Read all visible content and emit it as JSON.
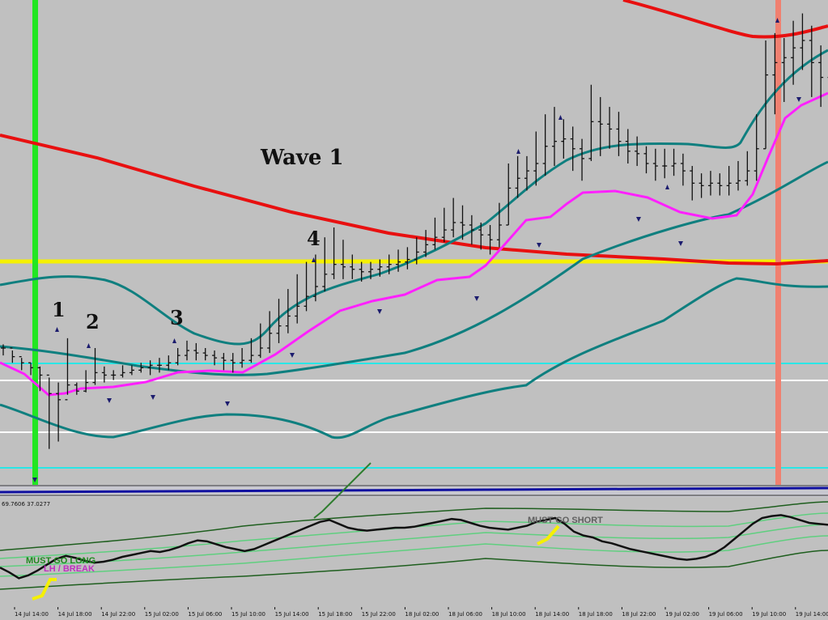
{
  "chart_data": [
    {
      "type": "ohlc",
      "title": "",
      "price_bars": [
        [
          100,
          94,
          103
        ],
        [
          93,
          88,
          98
        ],
        [
          88,
          82,
          92
        ],
        [
          84,
          78,
          88
        ],
        [
          78,
          65,
          85
        ],
        [
          63,
          18,
          76
        ],
        [
          58,
          24,
          72
        ],
        [
          70,
          62,
          108
        ],
        [
          65,
          62,
          72
        ],
        [
          72,
          64,
          82
        ],
        [
          80,
          70,
          100
        ],
        [
          78,
          72,
          85
        ],
        [
          78,
          74,
          82
        ],
        [
          80,
          76,
          86
        ],
        [
          82,
          78,
          86
        ],
        [
          84,
          80,
          88
        ],
        [
          86,
          78,
          90
        ],
        [
          86,
          80,
          92
        ],
        [
          88,
          82,
          94
        ],
        [
          94,
          86,
          100
        ],
        [
          98,
          90,
          106
        ],
        [
          96,
          90,
          104
        ],
        [
          94,
          90,
          100
        ],
        [
          92,
          86,
          98
        ],
        [
          90,
          82,
          96
        ],
        [
          88,
          80,
          96
        ],
        [
          90,
          84,
          100
        ],
        [
          94,
          88,
          108
        ],
        [
          100,
          92,
          120
        ],
        [
          112,
          96,
          130
        ],
        [
          118,
          104,
          140
        ],
        [
          126,
          112,
          148
        ],
        [
          134,
          120,
          160
        ],
        [
          142,
          130,
          170
        ],
        [
          150,
          138,
          176
        ],
        [
          160,
          146,
          190
        ],
        [
          168,
          156,
          198
        ],
        [
          166,
          156,
          188
        ],
        [
          164,
          156,
          176
        ],
        [
          162,
          154,
          170
        ],
        [
          164,
          156,
          170
        ],
        [
          166,
          158,
          172
        ],
        [
          168,
          160,
          176
        ],
        [
          170,
          162,
          180
        ],
        [
          172,
          164,
          182
        ],
        [
          178,
          168,
          190
        ],
        [
          184,
          174,
          196
        ],
        [
          190,
          180,
          206
        ],
        [
          196,
          186,
          214
        ],
        [
          202,
          190,
          222
        ],
        [
          200,
          188,
          216
        ],
        [
          196,
          184,
          208
        ],
        [
          192,
          180,
          202
        ],
        [
          188,
          176,
          200
        ],
        [
          200,
          182,
          218
        ],
        [
          230,
          200,
          250
        ],
        [
          238,
          222,
          256
        ],
        [
          244,
          228,
          256
        ],
        [
          250,
          232,
          276
        ],
        [
          264,
          240,
          290
        ],
        [
          268,
          248,
          296
        ],
        [
          270,
          254,
          286
        ],
        [
          262,
          244,
          280
        ],
        [
          254,
          236,
          270
        ],
        [
          284,
          252,
          314
        ],
        [
          282,
          256,
          304
        ],
        [
          278,
          262,
          296
        ],
        [
          268,
          256,
          292
        ],
        [
          260,
          250,
          278
        ],
        [
          258,
          248,
          272
        ],
        [
          250,
          242,
          264
        ],
        [
          248,
          236,
          262
        ],
        [
          248,
          238,
          262
        ],
        [
          250,
          240,
          262
        ],
        [
          244,
          232,
          258
        ],
        [
          234,
          220,
          248
        ],
        [
          232,
          222,
          242
        ],
        [
          234,
          224,
          244
        ],
        [
          232,
          224,
          242
        ],
        [
          234,
          224,
          248
        ],
        [
          236,
          228,
          252
        ],
        [
          244,
          232,
          260
        ],
        [
          262,
          236,
          290
        ],
        [
          322,
          262,
          350
        ],
        [
          332,
          290,
          356
        ],
        [
          336,
          300,
          352
        ],
        [
          344,
          314,
          366
        ],
        [
          350,
          326,
          372
        ],
        [
          332,
          304,
          362
        ],
        [
          320,
          296,
          346
        ],
        [
          324,
          300,
          352
        ],
        [
          330,
          304,
          356
        ]
      ],
      "wave_labels": [
        "Wave 1",
        "1",
        "2",
        "3",
        "4"
      ],
      "x_ticks": [
        "14 Jul 14:00",
        "14 Jul 18:00",
        "14 Jul 22:00",
        "15 Jul 02:00",
        "15 Jul 06:00",
        "15 Jul 10:00",
        "15 Jul 14:00",
        "15 Jul 18:00",
        "15 Jul 22:00",
        "18 Jul 02:00",
        "18 Jul 06:00",
        "18 Jul 10:00",
        "18 Jul 14:00",
        "18 Jul 18:00",
        "18 Jul 22:00",
        "19 Jul 02:00",
        "19 Jul 06:00",
        "19 Jul 10:00",
        "19 Jul 14:00"
      ],
      "oscillator_readout": "69.7606 37.0277",
      "oscillator_labels": [
        "MUST GO LONG",
        "LH / BREAK",
        "MUST GO SHORT"
      ],
      "oscillator_values": [
        39,
        34,
        28,
        31,
        36,
        42,
        48,
        51,
        49,
        46,
        44,
        45,
        47,
        50,
        52,
        54,
        56,
        55,
        57,
        60,
        64,
        67,
        66,
        63,
        60,
        58,
        56,
        58,
        62,
        66,
        70,
        74,
        78,
        82,
        86,
        88,
        84,
        80,
        78,
        77,
        78,
        79,
        80,
        80,
        81,
        83,
        85,
        87,
        89,
        88,
        85,
        82,
        80,
        79,
        78,
        80,
        82,
        86,
        88,
        90,
        84,
        76,
        72,
        70,
        66,
        64,
        61,
        58,
        56,
        54,
        52,
        50,
        48,
        47,
        48,
        50,
        54,
        60,
        68,
        76,
        84,
        90,
        92,
        93,
        91,
        88,
        85,
        84,
        83
      ]
    }
  ],
  "colors": {
    "background": "#c0c0c0",
    "ma_long": "#e81010",
    "ma_fast": "#ff20ff",
    "bands": "#0f7f7f",
    "support_yellow": "#f5f000",
    "cyan": "#2ae6e6",
    "white": "#ffffff",
    "green_marker": "#22e622",
    "salmon_marker": "#f08070",
    "bars": "#111111",
    "osc_line": "#111111",
    "osc_bands": "#2e7d2e"
  }
}
